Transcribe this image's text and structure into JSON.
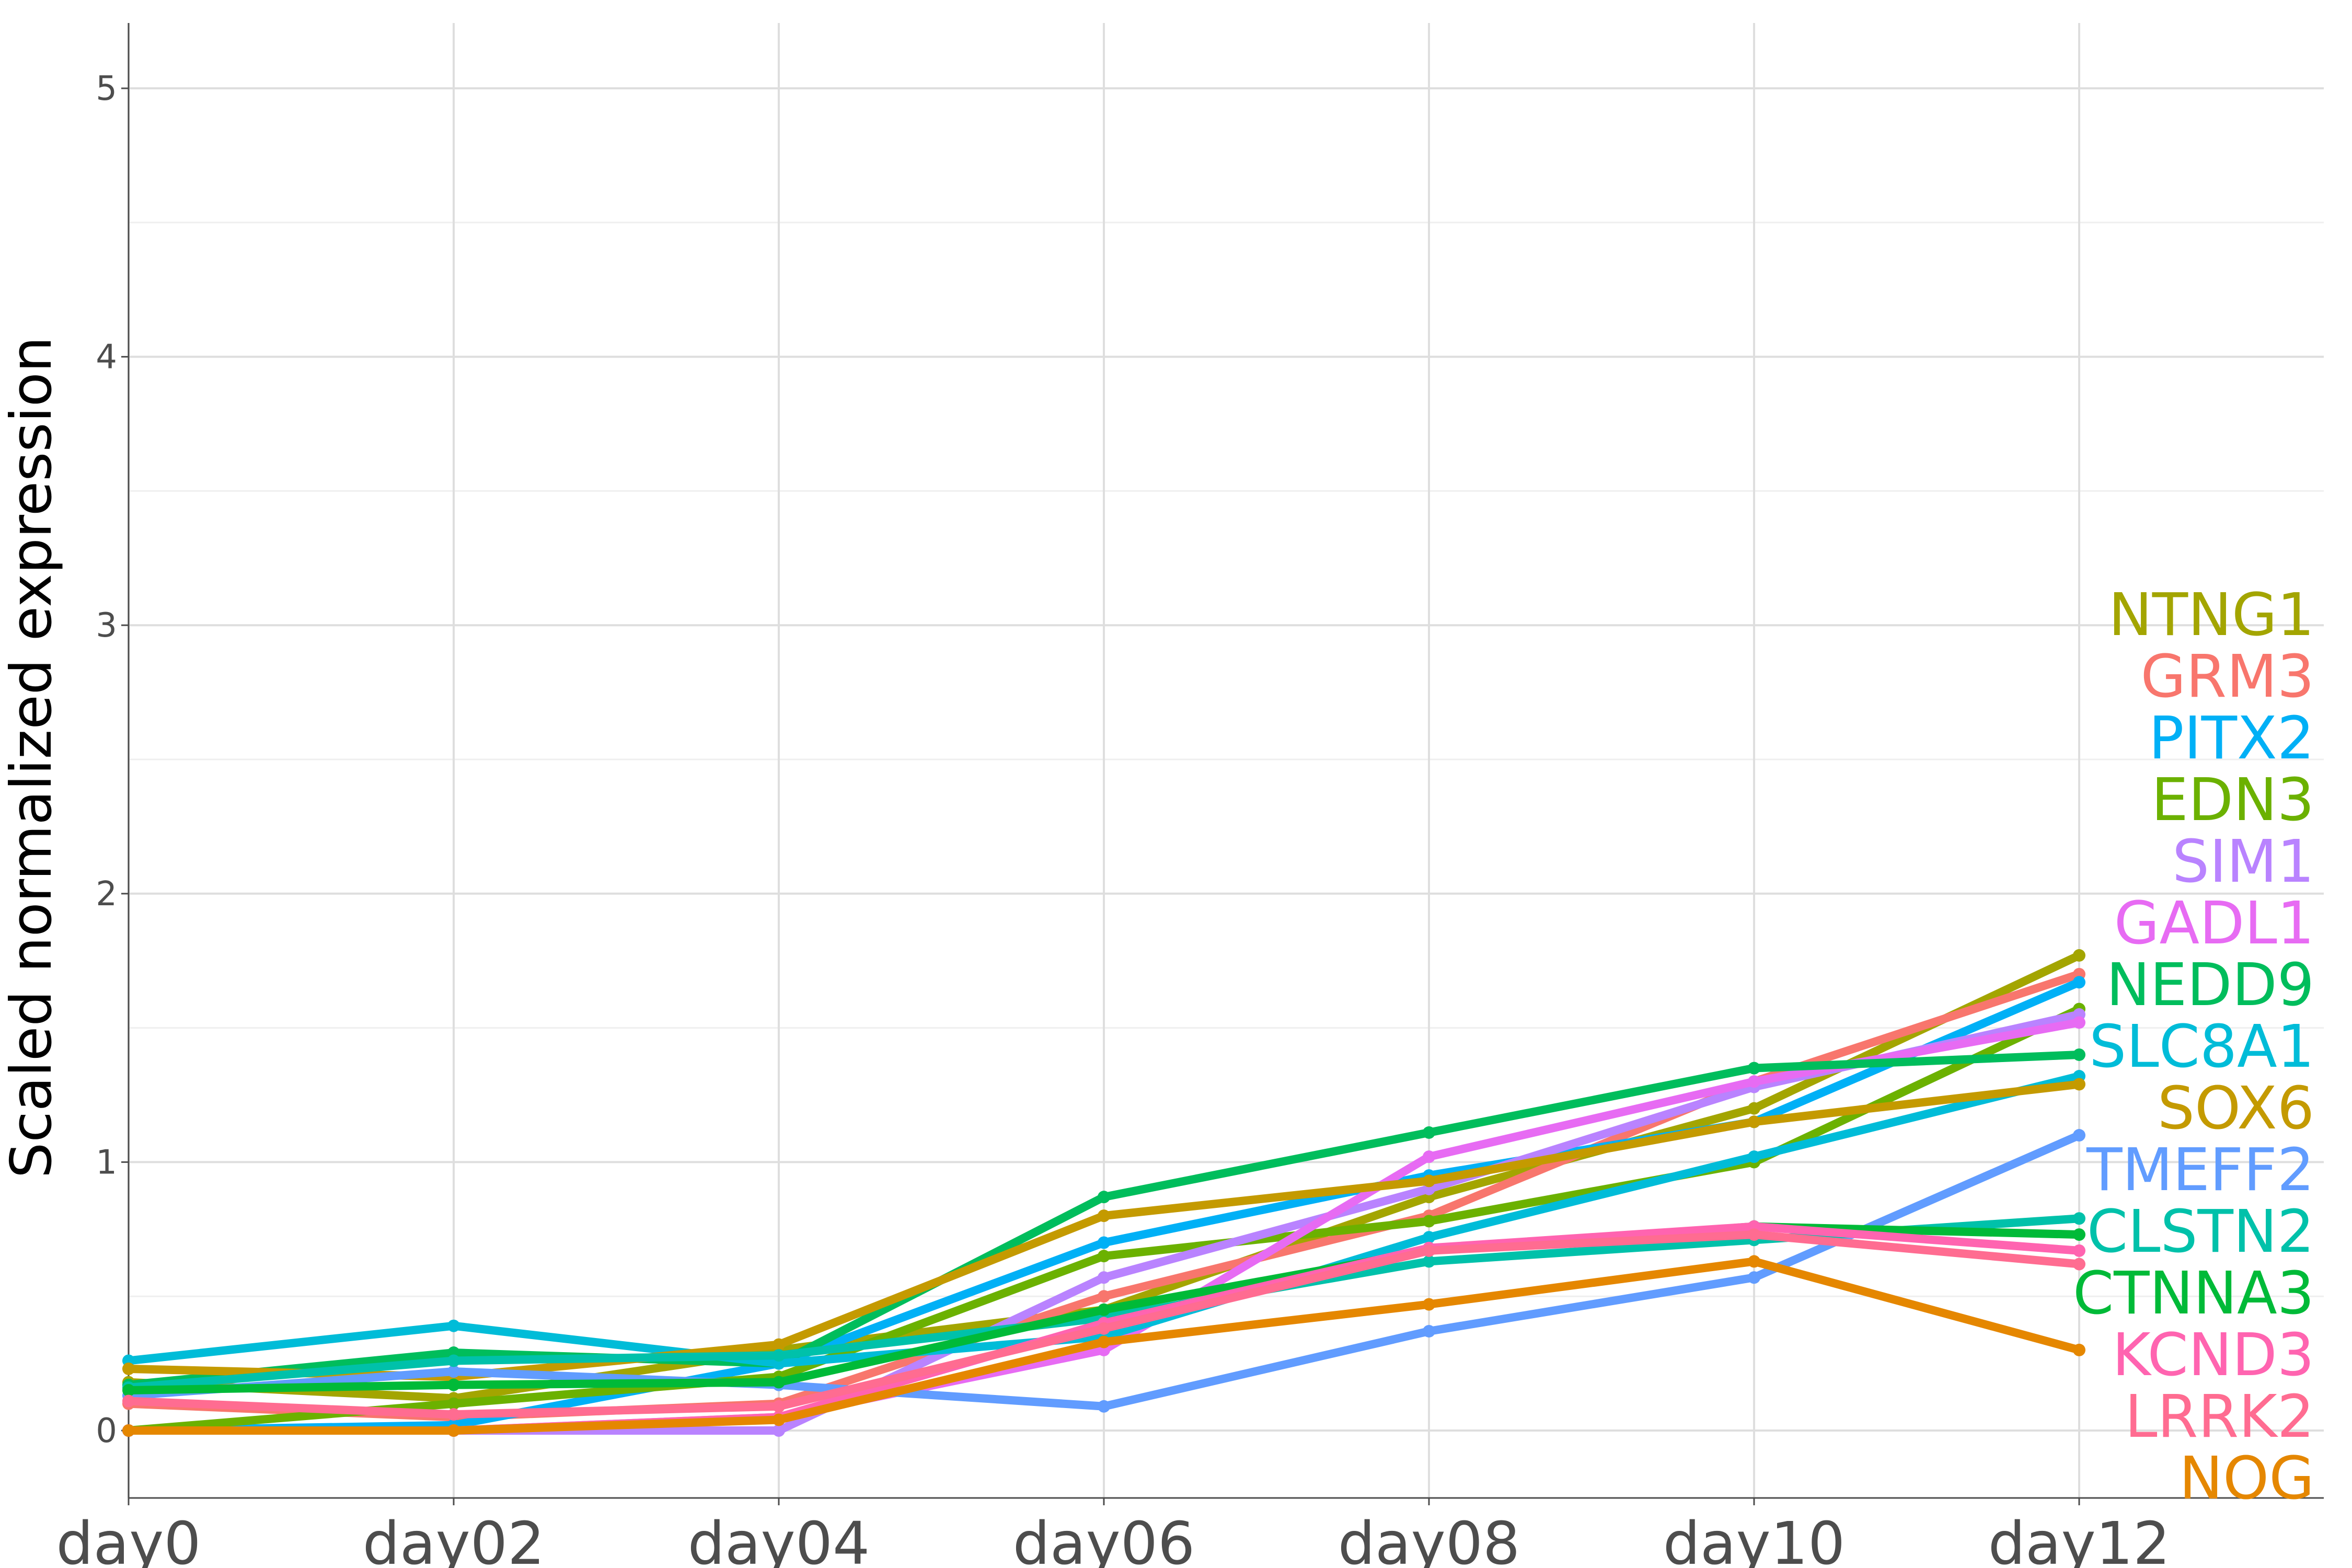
{
  "chart_data": {
    "type": "line",
    "title": "",
    "xlabel": "",
    "ylabel": "Scaled normalized expression",
    "categories": [
      "day0",
      "day02",
      "day04",
      "day06",
      "day08",
      "day10",
      "day12"
    ],
    "y_ticks": [
      0,
      1,
      2,
      3,
      4,
      5
    ],
    "ylim": [
      -0.25,
      5.25
    ],
    "grid": true,
    "legend": "direct labels at right end of lines",
    "series": [
      {
        "name": "NTNG1",
        "color": "#A3A500",
        "values": [
          0.18,
          0.12,
          0.3,
          0.45,
          0.87,
          1.2,
          1.77
        ]
      },
      {
        "name": "GRM3",
        "color": "#F8766D",
        "values": [
          0.1,
          0.05,
          0.1,
          0.5,
          0.8,
          1.3,
          1.7
        ]
      },
      {
        "name": "PITX2",
        "color": "#00B0F6",
        "values": [
          0.0,
          0.02,
          0.25,
          0.7,
          0.95,
          1.15,
          1.67
        ]
      },
      {
        "name": "EDN3",
        "color": "#6BB100",
        "values": [
          0.0,
          0.1,
          0.2,
          0.65,
          0.78,
          1.0,
          1.57
        ]
      },
      {
        "name": "SIM1",
        "color": "#B983FF",
        "values": [
          0.0,
          0.0,
          0.0,
          0.57,
          0.9,
          1.28,
          1.55
        ]
      },
      {
        "name": "GADL1",
        "color": "#E76BF3",
        "values": [
          0.0,
          0.0,
          0.05,
          0.3,
          1.02,
          1.3,
          1.52
        ]
      },
      {
        "name": "NEDD9",
        "color": "#00BD5C",
        "values": [
          0.17,
          0.29,
          0.25,
          0.87,
          1.11,
          1.35,
          1.4
        ]
      },
      {
        "name": "SLC8A1",
        "color": "#00BCD8",
        "values": [
          0.26,
          0.39,
          0.25,
          0.35,
          0.72,
          1.02,
          1.32
        ]
      },
      {
        "name": "SOX6",
        "color": "#C49A00",
        "values": [
          0.23,
          0.2,
          0.32,
          0.8,
          0.93,
          1.15,
          1.29
        ]
      },
      {
        "name": "TMEFF2",
        "color": "#619CFF",
        "values": [
          0.13,
          0.22,
          0.17,
          0.09,
          0.37,
          0.57,
          1.1
        ]
      },
      {
        "name": "CLSTN2",
        "color": "#00C1AA",
        "values": [
          0.16,
          0.26,
          0.28,
          0.42,
          0.63,
          0.71,
          0.79
        ]
      },
      {
        "name": "CTNNA3",
        "color": "#00BA38",
        "values": [
          0.15,
          0.17,
          0.18,
          0.45,
          0.67,
          0.76,
          0.73
        ]
      },
      {
        "name": "KCND3",
        "color": "#FF64B0",
        "values": [
          0.0,
          0.0,
          0.05,
          0.4,
          0.68,
          0.76,
          0.67
        ]
      },
      {
        "name": "LRRK2",
        "color": "#FF6C91",
        "values": [
          0.11,
          0.06,
          0.09,
          0.38,
          0.67,
          0.73,
          0.62
        ]
      },
      {
        "name": "NOG",
        "color": "#E58700",
        "values": [
          0.0,
          0.0,
          0.04,
          0.33,
          0.47,
          0.63,
          0.3
        ]
      }
    ],
    "label_order": [
      "NTNG1",
      "GRM3",
      "PITX2",
      "EDN3",
      "SIM1",
      "GADL1",
      "NEDD9",
      "SLC8A1",
      "SOX6",
      "TMEFF2",
      "CLSTN2",
      "CTNNA3",
      "KCND3",
      "LRRK2",
      "NOG"
    ]
  },
  "colors": {
    "grid_major": "#dedede",
    "grid_minor": "#efefef",
    "axis_line": "#4d4d4d",
    "background": "#ffffff"
  }
}
